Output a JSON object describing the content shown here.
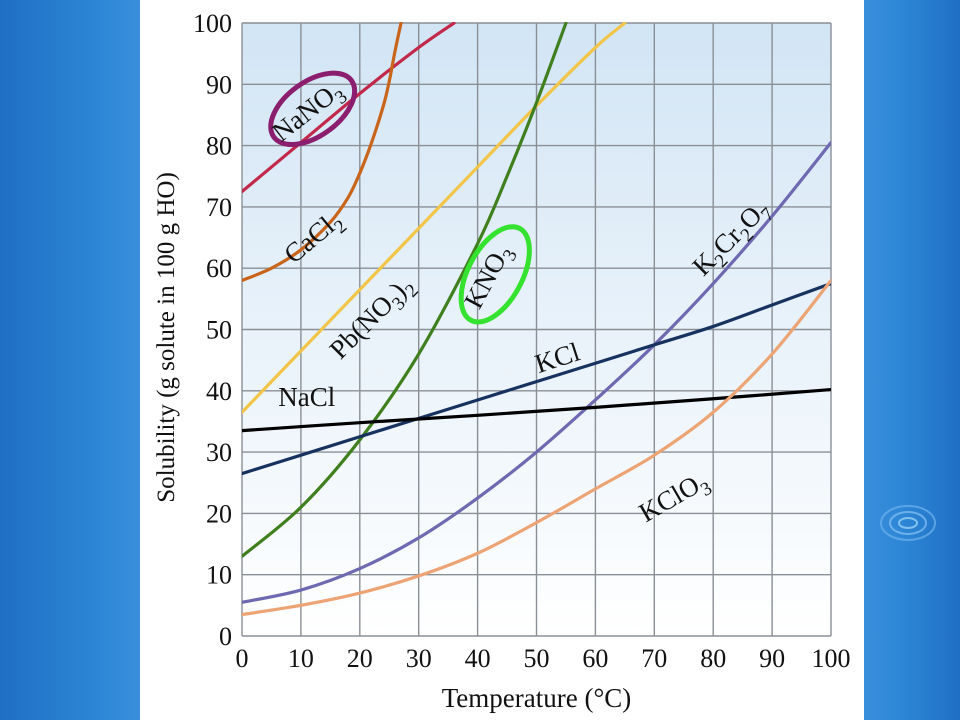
{
  "colors": {
    "panel_bg": "#ffffff",
    "plot_bg_top": "#d2e5f5",
    "plot_bg_bottom": "#ffffff",
    "grid": "#8a8f96",
    "slide_bg": "#2f80cf"
  },
  "icons": {
    "ripple": "water-ripple-icon"
  },
  "chart_data": {
    "type": "line",
    "title": "",
    "xlabel": "Temperature (°C)",
    "ylabel": "Solubility (g solute in 100 g HO)",
    "xlim": [
      0,
      100
    ],
    "ylim": [
      0,
      100
    ],
    "xticks": [
      0,
      10,
      20,
      30,
      40,
      50,
      60,
      70,
      80,
      90,
      100
    ],
    "yticks": [
      0,
      10,
      20,
      30,
      40,
      50,
      60,
      70,
      80,
      90,
      100
    ],
    "grid": true,
    "series": [
      {
        "name": "NaNO3",
        "color": "#c2284a",
        "highlight_color": "#8b1e6e",
        "x": [
          0,
          10,
          20,
          30,
          36
        ],
        "y": [
          72.5,
          80.5,
          88.5,
          96,
          100
        ]
      },
      {
        "name": "CaCl2",
        "color": "#c8651b",
        "x": [
          0,
          5,
          10,
          15,
          18,
          20,
          22,
          24,
          25,
          26,
          27
        ],
        "y": [
          58,
          60,
          63,
          67.5,
          71.5,
          75.5,
          80.5,
          86.5,
          90.5,
          95.5,
          100
        ]
      },
      {
        "name": "Pb(NO3)2",
        "color": "#f2c548",
        "x": [
          0,
          10,
          20,
          30,
          40,
          50,
          60,
          65
        ],
        "y": [
          36.5,
          46.5,
          56.5,
          66.5,
          76.5,
          86.5,
          96,
          100
        ]
      },
      {
        "name": "KNO3",
        "color": "#3f7f1e",
        "highlight_color": "#34e22f",
        "x": [
          0,
          10,
          20,
          30,
          40,
          45,
          50,
          55
        ],
        "y": [
          13,
          21,
          32,
          46,
          64,
          75,
          87,
          100
        ]
      },
      {
        "name": "K2Cr2O7",
        "color": "#6e69b0",
        "x": [
          0,
          10,
          20,
          30,
          40,
          50,
          60,
          70,
          80,
          90,
          100
        ],
        "y": [
          5.5,
          7.5,
          11,
          16,
          22.5,
          30,
          38.5,
          47.5,
          57.5,
          68.5,
          80.5
        ]
      },
      {
        "name": "KCl",
        "color": "#17325e",
        "x": [
          0,
          10,
          20,
          30,
          40,
          50,
          60,
          70,
          80,
          90,
          100
        ],
        "y": [
          26.5,
          29.5,
          32.5,
          35.5,
          38.5,
          41.5,
          44.5,
          47.5,
          50.5,
          54,
          57.5
        ]
      },
      {
        "name": "NaCl",
        "color": "#000000",
        "x": [
          0,
          20,
          40,
          60,
          80,
          100
        ],
        "y": [
          33.5,
          34.8,
          36,
          37.3,
          38.7,
          40.2
        ]
      },
      {
        "name": "KClO3",
        "color": "#eda475",
        "x": [
          0,
          10,
          20,
          30,
          40,
          50,
          60,
          70,
          80,
          90,
          100
        ],
        "y": [
          3.5,
          5,
          7,
          9.8,
          13.5,
          18.5,
          24,
          29.5,
          36.5,
          46,
          58
        ]
      }
    ],
    "annotations": [
      {
        "series": "NaNO3",
        "text": "NaNO",
        "sub": "3",
        "highlighted": true
      },
      {
        "series": "CaCl2",
        "text": "CaCl",
        "sub": "2"
      },
      {
        "series": "Pb(NO3)2",
        "text": "Pb(NO",
        "sub": "3",
        "tail": ")",
        "tail_sub": "2"
      },
      {
        "series": "KNO3",
        "text": "KNO",
        "sub": "3",
        "highlighted": true
      },
      {
        "series": "K2Cr2O7",
        "text": "K",
        "sub": "2",
        "mid": "Cr",
        "mid_sub": "2",
        "tail": "O",
        "tail_sub": "7"
      },
      {
        "series": "KCl",
        "text": "KCl"
      },
      {
        "series": "NaCl",
        "text": "NaCl"
      },
      {
        "series": "KClO3",
        "text": "KClO",
        "sub": "3"
      }
    ]
  }
}
